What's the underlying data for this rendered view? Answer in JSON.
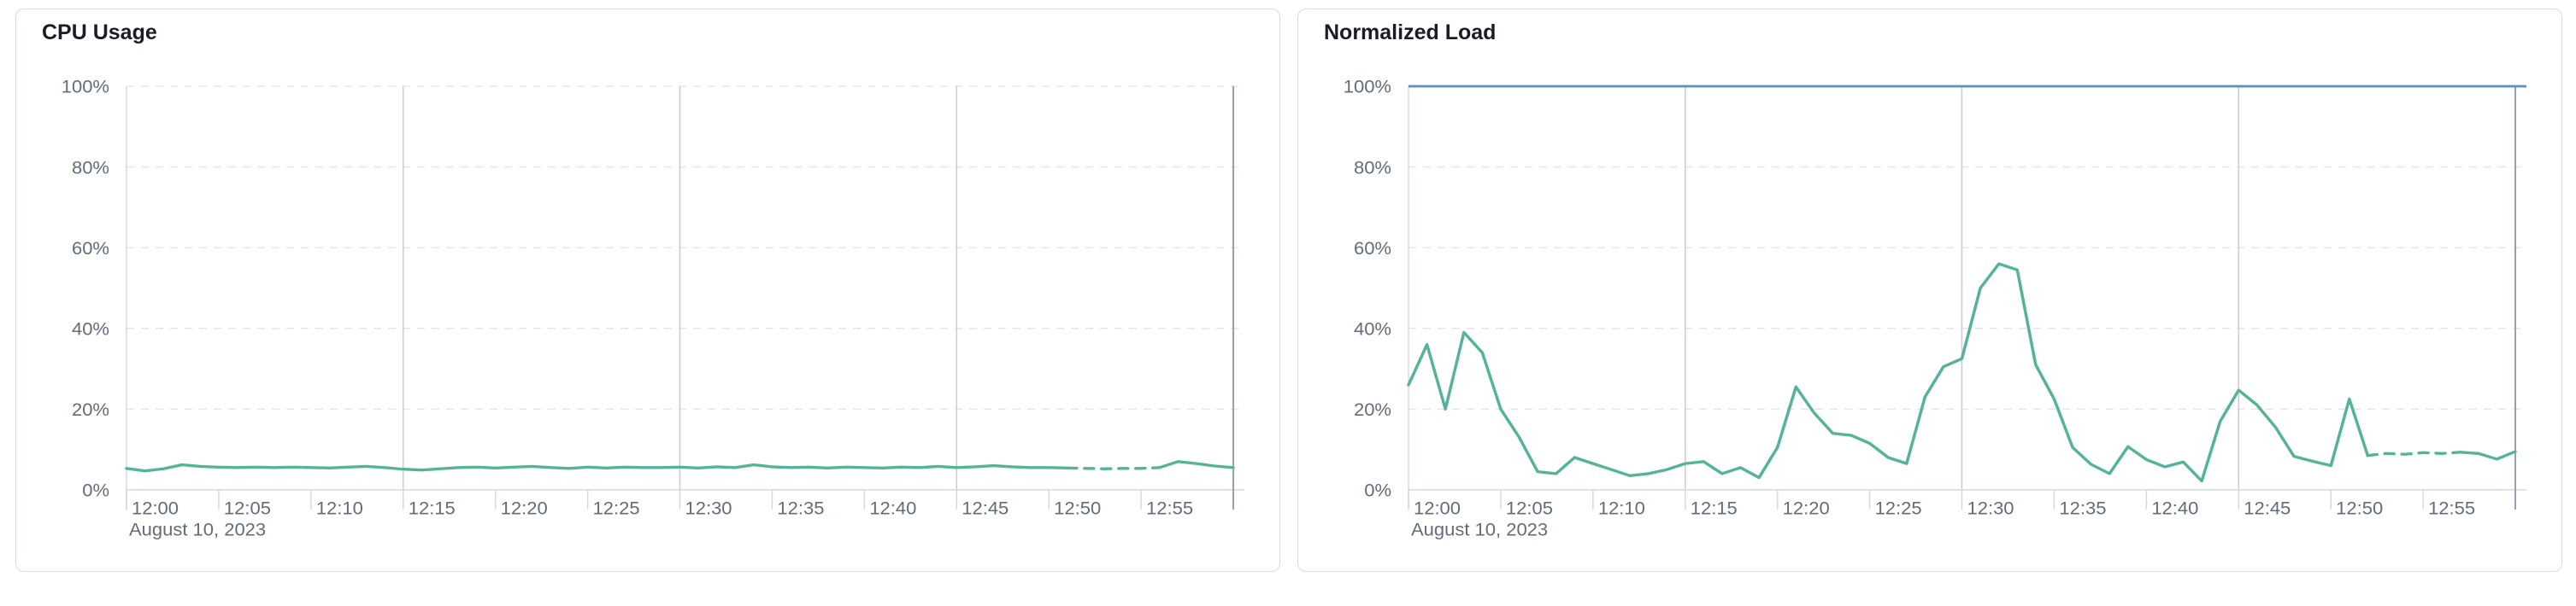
{
  "style": {
    "series_green": "#54b399",
    "reference_blue": "#6092c0",
    "grid_dashed_color": "#e2e6ee",
    "grid_vertical_color": "#c9cdd6",
    "end_line_color": "#99a0ac",
    "axis_line_color": "#d3dae6",
    "label_color": "#646b79",
    "title_color": "#1a1d26",
    "panel_border": "#d5dbe5",
    "background": "#ffffff"
  },
  "panels": [
    {
      "title": "CPU Usage"
    },
    {
      "title": "Normalized Load"
    }
  ],
  "chart_data": [
    {
      "type": "line",
      "title": "CPU Usage",
      "date_label": "August 10, 2023",
      "ylim": [
        0,
        100
      ],
      "grid": true,
      "legend": false,
      "y_ticks": [
        {
          "v": 0,
          "label": "0%"
        },
        {
          "v": 20,
          "label": "20%"
        },
        {
          "v": 40,
          "label": "40%"
        },
        {
          "v": 60,
          "label": "60%"
        },
        {
          "v": 80,
          "label": "80%"
        },
        {
          "v": 100,
          "label": "100%"
        }
      ],
      "x": [
        "12:00",
        "12:01",
        "12:02",
        "12:03",
        "12:04",
        "12:05",
        "12:06",
        "12:07",
        "12:08",
        "12:09",
        "12:10",
        "12:11",
        "12:12",
        "12:13",
        "12:14",
        "12:15",
        "12:16",
        "12:17",
        "12:18",
        "12:19",
        "12:20",
        "12:21",
        "12:22",
        "12:23",
        "12:24",
        "12:25",
        "12:26",
        "12:27",
        "12:28",
        "12:29",
        "12:30",
        "12:31",
        "12:32",
        "12:33",
        "12:34",
        "12:35",
        "12:36",
        "12:37",
        "12:38",
        "12:39",
        "12:40",
        "12:41",
        "12:42",
        "12:43",
        "12:44",
        "12:45",
        "12:46",
        "12:47",
        "12:48",
        "12:49",
        "12:50",
        "12:51",
        "12:52",
        "12:53",
        "12:54",
        "12:55",
        "12:56",
        "12:57",
        "12:58",
        "12:59",
        "13:00"
      ],
      "x_tick_labels": [
        "12:00",
        "12:05",
        "12:10",
        "12:15",
        "12:20",
        "12:25",
        "12:30",
        "12:35",
        "12:40",
        "12:45",
        "12:50",
        "12:55"
      ],
      "vertical_gridlines": [
        "12:15",
        "12:30",
        "12:45"
      ],
      "end_of_data_line": "13:00",
      "series": [
        {
          "name": "cpu-usage",
          "color": "#54b399",
          "dashed_from_index": 51,
          "dashed_to_index": 56,
          "values": [
            5.3,
            4.7,
            5.2,
            6.2,
            5.8,
            5.6,
            5.5,
            5.6,
            5.5,
            5.6,
            5.5,
            5.4,
            5.6,
            5.8,
            5.5,
            5.1,
            4.9,
            5.2,
            5.5,
            5.6,
            5.4,
            5.6,
            5.8,
            5.5,
            5.3,
            5.6,
            5.4,
            5.6,
            5.5,
            5.5,
            5.6,
            5.4,
            5.7,
            5.5,
            6.2,
            5.7,
            5.5,
            5.6,
            5.4,
            5.6,
            5.5,
            5.4,
            5.6,
            5.5,
            5.8,
            5.5,
            5.7,
            6.0,
            5.7,
            5.5,
            5.5,
            5.4,
            5.3,
            5.2,
            5.3,
            5.3,
            5.5,
            7.0,
            6.5,
            5.9,
            5.5
          ]
        }
      ],
      "reference_lines": []
    },
    {
      "type": "line",
      "title": "Normalized Load",
      "date_label": "August 10, 2023",
      "ylim": [
        0,
        100
      ],
      "grid": true,
      "legend": false,
      "y_ticks": [
        {
          "v": 0,
          "label": "0%"
        },
        {
          "v": 20,
          "label": "20%"
        },
        {
          "v": 40,
          "label": "40%"
        },
        {
          "v": 60,
          "label": "60%"
        },
        {
          "v": 80,
          "label": "80%"
        },
        {
          "v": 100,
          "label": "100%"
        }
      ],
      "x": [
        "12:00",
        "12:01",
        "12:02",
        "12:03",
        "12:04",
        "12:05",
        "12:06",
        "12:07",
        "12:08",
        "12:09",
        "12:10",
        "12:11",
        "12:12",
        "12:13",
        "12:14",
        "12:15",
        "12:16",
        "12:17",
        "12:18",
        "12:19",
        "12:20",
        "12:21",
        "12:22",
        "12:23",
        "12:24",
        "12:25",
        "12:26",
        "12:27",
        "12:28",
        "12:29",
        "12:30",
        "12:31",
        "12:32",
        "12:33",
        "12:34",
        "12:35",
        "12:36",
        "12:37",
        "12:38",
        "12:39",
        "12:40",
        "12:41",
        "12:42",
        "12:43",
        "12:44",
        "12:45",
        "12:46",
        "12:47",
        "12:48",
        "12:49",
        "12:50",
        "12:51",
        "12:52",
        "12:53",
        "12:54",
        "12:55",
        "12:56",
        "12:57",
        "12:58",
        "12:59",
        "13:00"
      ],
      "x_tick_labels": [
        "12:00",
        "12:05",
        "12:10",
        "12:15",
        "12:20",
        "12:25",
        "12:30",
        "12:35",
        "12:40",
        "12:45",
        "12:50",
        "12:55"
      ],
      "vertical_gridlines": [
        "12:15",
        "12:30",
        "12:45"
      ],
      "end_of_data_line": "13:00",
      "series": [
        {
          "name": "normalized-load",
          "color": "#54b399",
          "dashed_from_index": 52,
          "dashed_to_index": 57,
          "values": [
            26,
            36,
            20,
            39,
            34,
            20,
            13,
            4.5,
            4,
            8,
            6.5,
            5,
            3.5,
            4,
            5,
            6.5,
            7,
            4,
            5.5,
            3,
            10.5,
            25.5,
            19,
            14,
            13.5,
            11.5,
            8,
            6.5,
            23,
            30.5,
            32.5,
            50,
            56,
            54.5,
            31,
            22.5,
            10.5,
            6.3,
            4,
            10.7,
            7.5,
            5.7,
            6.9,
            2.2,
            17,
            24.7,
            21,
            15.5,
            8.3,
            7.1,
            6,
            22.5,
            8.5,
            9,
            8.8,
            9.2,
            9,
            9.3,
            9,
            7.6,
            9.5
          ]
        }
      ],
      "reference_lines": [
        {
          "y": 100,
          "color": "#6092c0",
          "style": "solid",
          "name": "max-capacity-line"
        }
      ]
    }
  ]
}
